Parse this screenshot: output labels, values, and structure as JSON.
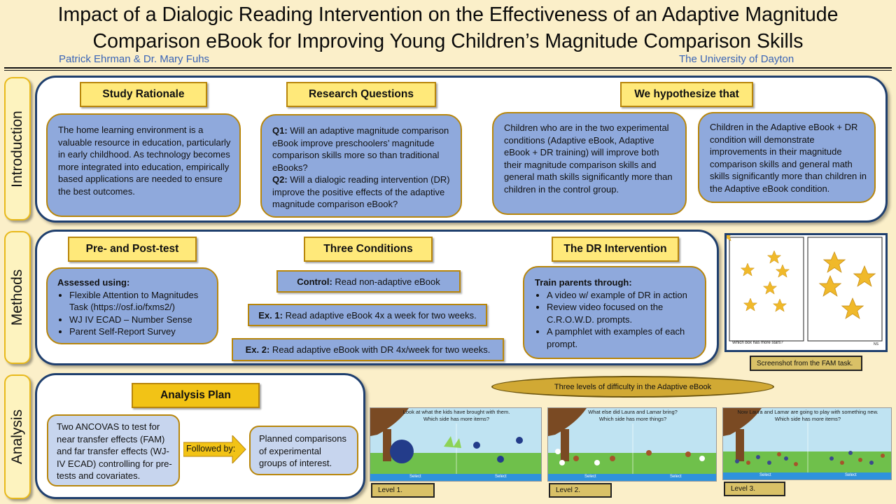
{
  "header": {
    "title_line1": "Impact of a Dialogic Reading Intervention on the Effectiveness of an Adaptive Magnitude",
    "title_line2": "Comparison eBook for Improving Young Children’s Magnitude Comparison Skills",
    "authors": "Patrick Ehrman & Dr. Mary Fuhs",
    "university": "The University of Dayton"
  },
  "sections": {
    "introduction": "Introduction",
    "methods": "Methods",
    "analysis": "Analysis"
  },
  "introduction": {
    "rationale_header": "Study Rationale",
    "rationale_text": "The home learning environment is a valuable resource in education, particularly in early childhood. As technology becomes more integrated into education, empirically based applications are needed to ensure the best outcomes.",
    "questions_header": "Research Questions",
    "q1_label": "Q1:",
    "q1_text": " Will an adaptive magnitude comparison eBook improve preschoolers’ magnitude comparison skills more so than traditional eBooks?",
    "q2_label": "Q2:",
    "q2_text": " Will a dialogic reading intervention (DR) improve the positive effects of the adaptive magnitude comparison eBook?",
    "hypothesis_header": "We hypothesize that",
    "hypothesis1": "Children who are in the two experimental conditions (Adaptive eBook, Adaptive eBook + DR training) will improve both their magnitude comparison skills and general math skills significantly more than children in the control group.",
    "hypothesis2": "Children in the Adaptive eBook + DR condition will demonstrate improvements in their magnitude comparison skills and general math skills significantly more than children in the Adaptive eBook condition."
  },
  "methods": {
    "prepost_header": "Pre- and Post-test",
    "assessed_label": "Assessed using:",
    "assessed_items": [
      "Flexible Attention to Magnitudes Task (https://osf.io/fxms2/)",
      "WJ IV ECAD – Number Sense",
      "Parent Self-Report Survey"
    ],
    "conditions_header": "Three Conditions",
    "control_label": "Control:",
    "control_text": " Read non-adaptive eBook",
    "ex1_label": "Ex. 1:",
    "ex1_text": " Read adaptive eBook 4x a week for two weeks.",
    "ex2_label": "Ex. 2:",
    "ex2_text": " Read adaptive eBook with DR 4x/week for two weeks.",
    "dr_header": "The DR Intervention",
    "train_label": "Train parents through:",
    "train_items": [
      "A video w/ example of DR in action",
      "Review video focused on the C.R.O.W.D. prompts.",
      "A pamphlet with examples of each prompt."
    ],
    "fam_question": "Which box has more stars?",
    "fam_initials": "NS",
    "fam_caption": "Screenshot from the FAM task."
  },
  "analysis": {
    "plan_header": "Analysis Plan",
    "ancova_text": "Two ANCOVAS to test for near transfer effects (FAM) and far transfer effects (WJ-IV ECAD) controlling for pre-tests and covariates.",
    "followed_by": "Followed by:",
    "planned_text": "Planned comparisons of experimental groups of interest.",
    "levels_banner": "Three levels of difficulty in the Adaptive eBook",
    "levels": [
      {
        "caption": "Level 1.",
        "line1": "Look at what the kids have brought with them.",
        "line2": "Which side has more items?",
        "select": "Select"
      },
      {
        "caption": "Level 2.",
        "line1": "What else did Laura and Lamar bring?",
        "line2": "Which side has more things?",
        "select": "Select"
      },
      {
        "caption": "Level 3.",
        "line1": "Now Laura and Lamar are going to play with something new.",
        "line2": "Which side has more items?",
        "select": "Select"
      }
    ]
  },
  "colors": {
    "background": "#fbefc9",
    "panel_border": "#1f3f6e",
    "bubble": "#8fa9dc",
    "header_fill": "#ffe97a",
    "accent_gold": "#f2c316",
    "author_blue": "#3a64b6"
  }
}
